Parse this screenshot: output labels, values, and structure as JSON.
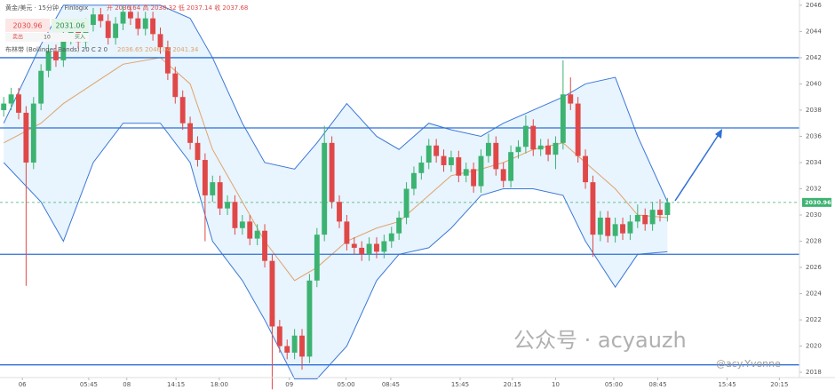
{
  "header": {
    "symbol": "黄金/美元 · 15分钟 · Finlogix",
    "ohlc_text": "开 2036.64  高 2038.32  低 2037.14  收 2037.68",
    "sell_price": "2030.96",
    "buy_price": "2031.06",
    "sell": "卖出",
    "qty": "10",
    "buy": "买入",
    "indicator": "布林带 (Bollinger Bands)  20 C 2 0",
    "indicator_values": "2036.65  2046.04  2041.34",
    "watermark": "公众号 · acyauzh",
    "watermark2": "@acy.Yvonne"
  },
  "chart_data": {
    "type": "candlestick",
    "candles": [
      [
        2038.0,
        2039.0,
        2037.5,
        2038.5
      ],
      [
        2038.5,
        2039.7,
        2038.0,
        2039.2
      ],
      [
        2039.2,
        2039.7,
        2037.3,
        2037.8
      ],
      [
        2037.8,
        2038.3,
        2024.6,
        2034.0
      ],
      [
        2034.0,
        2039.0,
        2033.5,
        2038.5
      ],
      [
        2038.5,
        2041.5,
        2038.0,
        2041.0
      ],
      [
        2041.0,
        2043.0,
        2040.5,
        2042.5
      ],
      [
        2042.5,
        2043.0,
        2041.3,
        2041.8
      ],
      [
        2041.8,
        2044.0,
        2041.3,
        2043.5
      ],
      [
        2043.5,
        2044.5,
        2043.0,
        2044.0
      ],
      [
        2044.0,
        2044.5,
        2042.7,
        2043.2
      ],
      [
        2043.2,
        2045.0,
        2042.7,
        2044.5
      ],
      [
        2044.5,
        2045.8,
        2044.0,
        2045.3
      ],
      [
        2045.3,
        2045.8,
        2044.3,
        2044.8
      ],
      [
        2044.8,
        2045.3,
        2043.0,
        2043.5
      ],
      [
        2043.5,
        2045.1,
        2043.0,
        2044.6
      ],
      [
        2044.6,
        2046.0,
        2044.1,
        2045.5
      ],
      [
        2045.5,
        2046.0,
        2044.5,
        2045.0
      ],
      [
        2045.0,
        2045.5,
        2043.7,
        2044.2
      ],
      [
        2044.2,
        2045.5,
        2043.7,
        2045.0
      ],
      [
        2045.0,
        2045.5,
        2043.3,
        2043.8
      ],
      [
        2043.8,
        2044.3,
        2042.3,
        2042.8
      ],
      [
        2042.8,
        2043.3,
        2040.3,
        2040.8
      ],
      [
        2040.8,
        2041.3,
        2038.5,
        2039.0
      ],
      [
        2039.0,
        2039.5,
        2036.5,
        2037.0
      ],
      [
        2037.0,
        2037.5,
        2035.0,
        2035.5
      ],
      [
        2035.5,
        2036.0,
        2033.7,
        2034.2
      ],
      [
        2034.2,
        2034.7,
        2028.0,
        2031.5
      ],
      [
        2031.5,
        2033.0,
        2031.0,
        2032.5
      ],
      [
        2032.5,
        2033.0,
        2030.0,
        2030.5
      ],
      [
        2030.5,
        2031.5,
        2030.0,
        2031.0
      ],
      [
        2031.0,
        2031.5,
        2028.5,
        2029.0
      ],
      [
        2029.0,
        2030.0,
        2028.5,
        2029.5
      ],
      [
        2029.5,
        2030.0,
        2027.7,
        2028.2
      ],
      [
        2028.2,
        2029.3,
        2027.7,
        2028.8
      ],
      [
        2028.8,
        2029.3,
        2026.0,
        2026.5
      ],
      [
        2026.5,
        2027.0,
        2016.7,
        2021.5
      ],
      [
        2021.5,
        2022.0,
        2019.5,
        2020.0
      ],
      [
        2020.0,
        2020.5,
        2019.0,
        2019.5
      ],
      [
        2019.5,
        2021.3,
        2019.0,
        2020.8
      ],
      [
        2020.8,
        2021.3,
        2018.2,
        2019.2
      ],
      [
        2019.2,
        2025.5,
        2018.7,
        2025.0
      ],
      [
        2025.0,
        2029.0,
        2024.5,
        2028.5
      ],
      [
        2028.5,
        2036.8,
        2028.0,
        2035.5
      ],
      [
        2035.5,
        2036.0,
        2030.5,
        2031.0
      ],
      [
        2031.0,
        2031.5,
        2029.0,
        2029.5
      ],
      [
        2029.5,
        2030.0,
        2027.3,
        2027.8
      ],
      [
        2027.8,
        2028.3,
        2027.0,
        2027.5
      ],
      [
        2027.5,
        2028.0,
        2026.5,
        2027.0
      ],
      [
        2027.0,
        2028.3,
        2026.5,
        2027.8
      ],
      [
        2027.8,
        2028.3,
        2026.7,
        2027.2
      ],
      [
        2027.2,
        2028.5,
        2026.7,
        2028.0
      ],
      [
        2028.0,
        2029.1,
        2027.5,
        2028.6
      ],
      [
        2028.6,
        2030.3,
        2028.1,
        2029.8
      ],
      [
        2029.8,
        2032.5,
        2029.3,
        2032.0
      ],
      [
        2032.0,
        2033.7,
        2031.5,
        2033.2
      ],
      [
        2033.2,
        2034.5,
        2032.7,
        2034.0
      ],
      [
        2034.0,
        2035.8,
        2033.5,
        2035.3
      ],
      [
        2035.3,
        2035.8,
        2034.0,
        2034.5
      ],
      [
        2034.5,
        2035.0,
        2033.3,
        2033.8
      ],
      [
        2033.8,
        2034.9,
        2033.3,
        2034.4
      ],
      [
        2034.4,
        2034.9,
        2032.5,
        2033.0
      ],
      [
        2033.0,
        2034.0,
        2032.5,
        2033.5
      ],
      [
        2033.5,
        2034.0,
        2031.7,
        2032.2
      ],
      [
        2032.2,
        2035.0,
        2031.7,
        2034.5
      ],
      [
        2034.5,
        2036.2,
        2034.0,
        2035.5
      ],
      [
        2035.5,
        2036.0,
        2033.0,
        2033.5
      ],
      [
        2033.5,
        2034.0,
        2032.1,
        2032.6
      ],
      [
        2032.6,
        2035.3,
        2032.1,
        2034.8
      ],
      [
        2034.8,
        2035.7,
        2034.3,
        2035.2
      ],
      [
        2035.2,
        2037.6,
        2034.7,
        2036.8
      ],
      [
        2036.8,
        2037.3,
        2034.5,
        2035.0
      ],
      [
        2035.0,
        2035.8,
        2034.5,
        2035.3
      ],
      [
        2035.3,
        2035.8,
        2034.1,
        2034.6
      ],
      [
        2034.6,
        2036.0,
        2033.5,
        2035.5
      ],
      [
        2035.5,
        2041.8,
        2035.0,
        2039.2
      ],
      [
        2039.2,
        2040.5,
        2038.0,
        2038.5
      ],
      [
        2038.5,
        2039.0,
        2034.0,
        2034.5
      ],
      [
        2034.5,
        2035.0,
        2032.0,
        2032.5
      ],
      [
        2032.5,
        2033.0,
        2026.8,
        2028.5
      ],
      [
        2028.5,
        2030.3,
        2028.0,
        2029.8
      ],
      [
        2029.8,
        2030.3,
        2027.9,
        2028.4
      ],
      [
        2028.4,
        2029.8,
        2027.9,
        2029.3
      ],
      [
        2029.3,
        2029.8,
        2028.1,
        2028.6
      ],
      [
        2028.6,
        2030.0,
        2028.1,
        2029.5
      ],
      [
        2029.5,
        2030.8,
        2029.0,
        2030.0
      ],
      [
        2030.0,
        2030.5,
        2028.8,
        2029.3
      ],
      [
        2029.3,
        2031.0,
        2028.8,
        2030.4
      ],
      [
        2030.4,
        2031.2,
        2029.5,
        2030.0
      ],
      [
        2030.0,
        2031.3,
        2029.5,
        2030.96
      ]
    ],
    "up_color": "#3cb371",
    "down_color": "#e04848",
    "bands": {
      "x": [
        0,
        5,
        8,
        12,
        16,
        21,
        25,
        28,
        32,
        35,
        39,
        42,
        46,
        50,
        53,
        57,
        60,
        64,
        67,
        71,
        75,
        78,
        82,
        85,
        89
      ],
      "upper": [
        2037.0,
        2043.0,
        2046.0,
        2046.0,
        2046.0,
        2046.0,
        2045.0,
        2042.0,
        2037.0,
        2034.0,
        2033.5,
        2035.5,
        2038.5,
        2036.0,
        2035.0,
        2037.0,
        2036.5,
        2036.0,
        2037.0,
        2038.0,
        2039.0,
        2040.0,
        2040.5,
        2036.0,
        2031.0
      ],
      "middle": [
        2035.5,
        2037.0,
        2038.5,
        2040.0,
        2041.5,
        2042.0,
        2040.0,
        2035.0,
        2031.0,
        2028.0,
        2025.0,
        2026.0,
        2028.0,
        2029.0,
        2029.5,
        2031.5,
        2033.0,
        2033.5,
        2034.0,
        2035.0,
        2035.5,
        2034.0,
        2032.0,
        2030.0,
        2029.8
      ],
      "lower": [
        2034.0,
        2031.0,
        2028.0,
        2034.0,
        2037.0,
        2037.0,
        2034.0,
        2028.0,
        2025.0,
        2022.0,
        2017.5,
        2017.5,
        2020.0,
        2025.0,
        2027.0,
        2027.5,
        2029.0,
        2031.5,
        2032.0,
        2032.0,
        2031.5,
        2028.0,
        2024.5,
        2027.0,
        2027.2
      ],
      "band_color": "#3b78d8",
      "middle_color": "#e0a46a",
      "fill": "rgba(33,150,243,0.10)"
    },
    "hlines": [
      2042.0,
      2036.64,
      2027.0,
      2018.57
    ],
    "hline_color": "#2f6fd6",
    "last_price": 2030.96,
    "last_color": "#3cb371",
    "xlim": [
      -0.5,
      106.7
    ],
    "ylim": [
      2017.6,
      2046.4
    ],
    "yticks": [
      2046,
      2044,
      2042,
      2040,
      2038,
      2036,
      2034,
      2032,
      2030,
      2028,
      2026,
      2024,
      2022,
      2020,
      2018
    ],
    "xticks": [
      {
        "value": 2.5,
        "label": "06"
      },
      {
        "value": 11.4,
        "label": "05:45"
      },
      {
        "value": 16.5,
        "label": "08"
      },
      {
        "value": 23.1,
        "label": "14:15"
      },
      {
        "value": 28.9,
        "label": "18:00"
      },
      {
        "value": 38.3,
        "label": "09"
      },
      {
        "value": 45.9,
        "label": "05:00"
      },
      {
        "value": 51.9,
        "label": "08:45"
      },
      {
        "value": 61.2,
        "label": "15:45"
      },
      {
        "value": 68.2,
        "label": "20:15"
      },
      {
        "value": 74.0,
        "label": "10"
      },
      {
        "value": 81.8,
        "label": "05:00"
      },
      {
        "value": 87.7,
        "label": "08:45"
      },
      {
        "value": 97.0,
        "label": "15:45"
      },
      {
        "value": 104.0,
        "label": "20:15"
      }
    ]
  }
}
